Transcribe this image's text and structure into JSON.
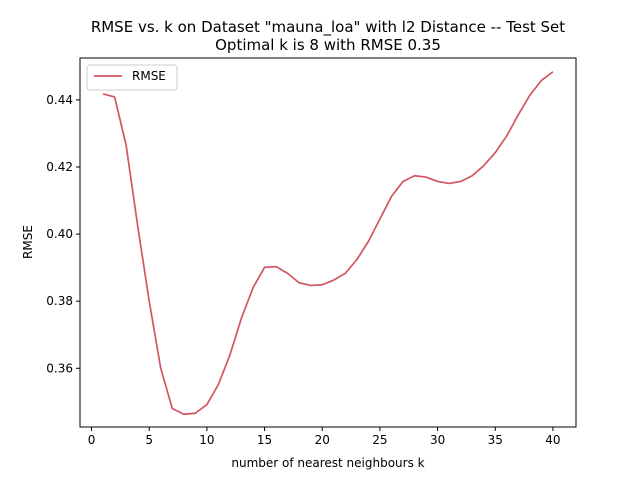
{
  "chart_data": {
    "type": "line",
    "title": "RMSE vs. k on Dataset \"mauna_loa\" with l2 Distance -- Test Set",
    "subtitle": "Optimal k is 8 with RMSE 0.35",
    "xlabel": "number of nearest neighbours k",
    "ylabel": "RMSE",
    "xlim": [
      -1,
      42
    ],
    "ylim": [
      0.3425,
      0.4525
    ],
    "xticks": [
      0,
      5,
      10,
      15,
      20,
      25,
      30,
      35,
      40
    ],
    "yticks": [
      0.36,
      0.38,
      0.4,
      0.42,
      0.44
    ],
    "ytick_labels": [
      "0.36",
      "0.38",
      "0.40",
      "0.42",
      "0.44"
    ],
    "grid": false,
    "legend": "upper-left",
    "series": [
      {
        "name": "RMSE",
        "color": "#d1555f",
        "x": [
          1,
          2,
          3,
          4,
          5,
          6,
          7,
          8,
          9,
          10,
          11,
          12,
          13,
          14,
          15,
          16,
          17,
          18,
          19,
          20,
          21,
          22,
          23,
          24,
          25,
          26,
          27,
          28,
          29,
          30,
          31,
          32,
          33,
          34,
          35,
          36,
          37,
          38,
          39,
          40
        ],
        "y": [
          0.4418,
          0.4409,
          0.4265,
          0.4025,
          0.38,
          0.36,
          0.348,
          0.3463,
          0.3466,
          0.3492,
          0.3552,
          0.364,
          0.375,
          0.384,
          0.3901,
          0.3903,
          0.3883,
          0.3855,
          0.3847,
          0.3849,
          0.3863,
          0.3883,
          0.3924,
          0.3978,
          0.4045,
          0.4112,
          0.4157,
          0.4174,
          0.417,
          0.4157,
          0.4151,
          0.4157,
          0.4174,
          0.4204,
          0.4243,
          0.4293,
          0.4356,
          0.4414,
          0.4458,
          0.4484
        ]
      }
    ]
  }
}
